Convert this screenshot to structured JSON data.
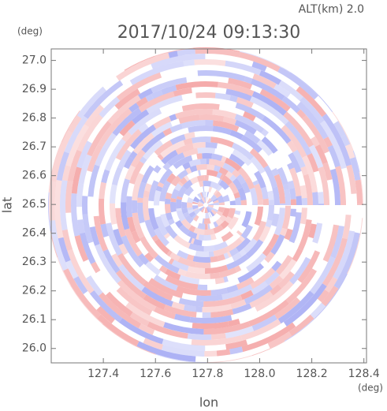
{
  "chart_data": {
    "type": "ppi",
    "title": "2017/10/24 09:13:30",
    "subtitle": "ALT(km) 2.0",
    "xlabel": "lon",
    "ylabel": "lat",
    "xunit": "(deg)",
    "yunit": "(deg)",
    "xlim": [
      127.2,
      128.41
    ],
    "ylim": [
      25.95,
      27.04
    ],
    "xticks": [
      127.4,
      127.6,
      127.8,
      {
        "value": 128.0,
        "label": "128.0"
      },
      128.2,
      128.4
    ],
    "yticks": [
      {
        "value": 26.0,
        "label": "26.0"
      },
      26.1,
      26.2,
      26.3,
      26.4,
      26.5,
      26.6,
      26.7,
      26.8,
      26.9,
      {
        "value": 27.0,
        "label": "27.0"
      }
    ],
    "colors": [
      "#f4a6a6",
      "#a9aef4"
    ]
  }
}
